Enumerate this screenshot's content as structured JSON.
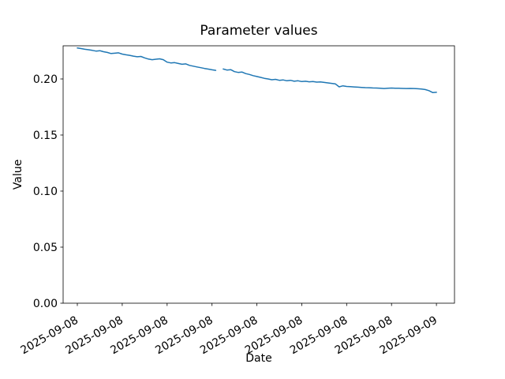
{
  "figure": {
    "background": "#ffffff",
    "text_color": "#000000",
    "spine_color": "#000000"
  },
  "chart_data": {
    "type": "line",
    "title": "Parameter values",
    "xlabel": "Date",
    "ylabel": "Value",
    "series_color": "#1f77b4",
    "legend": "none",
    "grid": false,
    "x_tick_labels": [
      "2025-09-08",
      "2025-09-08",
      "2025-09-08",
      "2025-09-08",
      "2025-09-08",
      "2025-09-08",
      "2025-09-08",
      "2025-09-08",
      "2025-09-09"
    ],
    "x_tick_hours": [
      0,
      3,
      6,
      9,
      12,
      15,
      18,
      21,
      24
    ],
    "y_tick_labels": [
      "0.00",
      "0.05",
      "0.10",
      "0.15",
      "0.20"
    ],
    "y_ticks": [
      0.0,
      0.05,
      0.1,
      0.15,
      0.2
    ],
    "xlim_hours": [
      -0.95,
      25.21
    ],
    "ylim": [
      0.0,
      0.2296
    ],
    "x_start_hour": 0,
    "x_step_hours": 0.25,
    "values": [
      0.2276,
      0.2271,
      0.2265,
      0.2261,
      0.2255,
      0.2249,
      0.2252,
      0.2243,
      0.2237,
      0.2227,
      0.223,
      0.2233,
      0.2222,
      0.2216,
      0.2211,
      0.2204,
      0.2198,
      0.2201,
      0.2188,
      0.2178,
      0.2172,
      0.2176,
      0.218,
      0.2172,
      0.215,
      0.2143,
      0.2146,
      0.2138,
      0.2131,
      0.2135,
      0.2121,
      0.2114,
      0.2107,
      0.2101,
      0.2094,
      0.2088,
      0.2082,
      0.2077,
      null,
      0.2089,
      0.208,
      0.2083,
      0.2066,
      0.2059,
      0.2062,
      0.2048,
      0.204,
      0.203,
      0.2022,
      0.2014,
      0.2006,
      0.2,
      0.1993,
      0.1997,
      0.1988,
      0.1992,
      0.1984,
      0.1988,
      0.198,
      0.1984,
      0.1977,
      0.198,
      0.1975,
      0.1978,
      0.1972,
      0.1974,
      0.1969,
      0.1965,
      0.1961,
      0.1956,
      0.193,
      0.1939,
      0.1933,
      0.1931,
      0.1929,
      0.1927,
      0.1925,
      0.1923,
      0.1922,
      0.192,
      0.1919,
      0.1917,
      0.1915,
      0.1917,
      0.1919,
      0.1918,
      0.1917,
      0.1916,
      0.1915,
      0.1916,
      0.1915,
      0.1913,
      0.1911,
      0.1906,
      0.1896,
      0.1879,
      0.1881
    ]
  }
}
